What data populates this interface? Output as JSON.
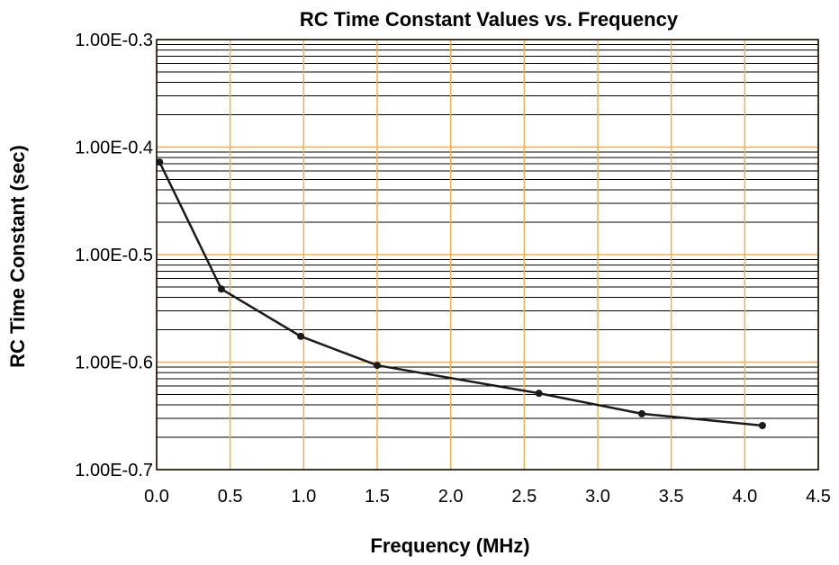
{
  "chart_data": {
    "type": "line",
    "title": "RC Time Constant Values vs. Frequency",
    "xlabel": "Frequency (MHz)",
    "ylabel": "RC Time Constant (sec)",
    "x_ticks": [
      "0.0",
      "0.5",
      "1.0",
      "1.5",
      "2.0",
      "2.5",
      "3.0",
      "3.5",
      "4.0",
      "4.5"
    ],
    "x_tick_values": [
      0.0,
      0.5,
      1.0,
      1.5,
      2.0,
      2.5,
      3.0,
      3.5,
      4.0,
      4.5
    ],
    "y_ticks": [
      "1.00E-0.3",
      "1.00E-0.4",
      "1.00E-0.5",
      "1.00E-0.6",
      "1.00E-0.7"
    ],
    "y_tick_exponents": [
      -0.3,
      -0.4,
      -0.5,
      -0.6,
      -0.7
    ],
    "xlim": [
      0,
      4.5
    ],
    "y_exponent_range": [
      -0.7,
      -0.3
    ],
    "log_scale_y": true,
    "grid": true,
    "colors": {
      "major_grid": "#f5b04a",
      "minor_grid": "#000000",
      "series_line": "#1a1a1a",
      "marker": "#1a1a1a"
    },
    "series": [
      {
        "x": [
          0.02,
          0.44,
          0.98,
          1.5,
          2.6,
          3.3,
          4.12
        ],
        "y_exponent": [
          -0.414,
          -0.532,
          -0.576,
          -0.603,
          -0.629,
          -0.648,
          -0.659
        ]
      }
    ]
  }
}
